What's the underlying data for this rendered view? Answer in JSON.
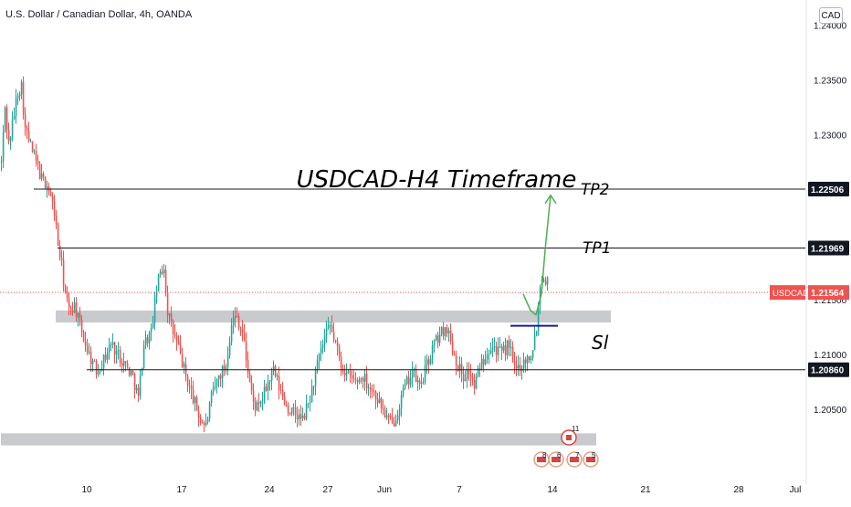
{
  "header": {
    "symbol_title": "U.S. Dollar / Canadian Dollar, 4h, OANDA",
    "currency_button": "CAD"
  },
  "colors": {
    "up": "#26a69a",
    "down": "#ef5350",
    "zone": "#c9cacd",
    "arrow": "#4caf50",
    "sl": "#1a1aa6",
    "price_badge": "#ef5350"
  },
  "chart_data": {
    "type": "candlestick",
    "symbol": "USDCAD",
    "timeframe": "4h",
    "source": "OANDA",
    "ylim": [
      1.199,
      1.2423
    ],
    "y_ticks": [
      1.205,
      1.21,
      1.215,
      1.22,
      1.225,
      1.23,
      1.235,
      1.24
    ],
    "y_tick_labels": [
      "1.20500",
      "1.21000",
      "1.21500",
      "1.22000",
      "1.22500",
      "1.23000",
      "1.23500",
      "1.24000"
    ],
    "x_ticks": [
      {
        "label": "10",
        "bar": 47
      },
      {
        "label": "17",
        "bar": 99
      },
      {
        "label": "24",
        "bar": 147
      },
      {
        "label": "27",
        "bar": 179
      },
      {
        "label": "Jun",
        "bar": 210
      },
      {
        "label": "7",
        "bar": 251
      },
      {
        "label": "14",
        "bar": 302
      },
      {
        "label": "21",
        "bar": 353
      },
      {
        "label": "28",
        "bar": 404
      },
      {
        "label": "Jul",
        "bar": 435
      }
    ],
    "bar_count": 466,
    "anchors": [
      [
        0,
        1.2275
      ],
      [
        2,
        1.2325
      ],
      [
        4,
        1.2292
      ],
      [
        6,
        1.231
      ],
      [
        9,
        1.234
      ],
      [
        11,
        1.2345
      ],
      [
        13,
        1.2305
      ],
      [
        16,
        1.229
      ],
      [
        19,
        1.2275
      ],
      [
        22,
        1.226
      ],
      [
        25,
        1.2255
      ],
      [
        29,
        1.223
      ],
      [
        31,
        1.22
      ],
      [
        33,
        1.218
      ],
      [
        35,
        1.2155
      ],
      [
        37,
        1.214
      ],
      [
        40,
        1.2145
      ],
      [
        44,
        1.212
      ],
      [
        48,
        1.21
      ],
      [
        52,
        1.2085
      ],
      [
        56,
        1.2095
      ],
      [
        60,
        1.211
      ],
      [
        64,
        1.21
      ],
      [
        68,
        1.209
      ],
      [
        72,
        1.208
      ],
      [
        75,
        1.206
      ],
      [
        78,
        1.211
      ],
      [
        82,
        1.212
      ],
      [
        85,
        1.216
      ],
      [
        87,
        1.2175
      ],
      [
        89,
        1.218
      ],
      [
        91,
        1.214
      ],
      [
        94,
        1.212
      ],
      [
        97,
        1.2105
      ],
      [
        101,
        1.208
      ],
      [
        105,
        1.206
      ],
      [
        109,
        1.204
      ],
      [
        112,
        1.2035
      ],
      [
        115,
        1.206
      ],
      [
        119,
        1.208
      ],
      [
        123,
        1.209
      ],
      [
        126,
        1.213
      ],
      [
        129,
        1.2135
      ],
      [
        132,
        1.212
      ],
      [
        135,
        1.2085
      ],
      [
        138,
        1.2055
      ],
      [
        141,
        1.205
      ],
      [
        145,
        1.207
      ],
      [
        149,
        1.2085
      ],
      [
        153,
        1.2065
      ],
      [
        157,
        1.205
      ],
      [
        161,
        1.2045
      ],
      [
        165,
        1.204
      ],
      [
        169,
        1.206
      ],
      [
        173,
        1.209
      ],
      [
        177,
        1.2115
      ],
      [
        180,
        1.2125
      ],
      [
        183,
        1.211
      ],
      [
        186,
        1.209
      ],
      [
        190,
        1.208
      ],
      [
        194,
        1.2075
      ],
      [
        198,
        1.208
      ],
      [
        202,
        1.207
      ],
      [
        206,
        1.206
      ],
      [
        210,
        1.2045
      ],
      [
        214,
        1.2035
      ],
      [
        217,
        1.205
      ],
      [
        221,
        1.207
      ],
      [
        225,
        1.2085
      ],
      [
        229,
        1.207
      ],
      [
        233,
        1.209
      ],
      [
        237,
        1.211
      ],
      [
        241,
        1.212
      ],
      [
        244,
        1.2125
      ],
      [
        247,
        1.2105
      ],
      [
        250,
        1.209
      ],
      [
        253,
        1.208
      ],
      [
        256,
        1.2085
      ],
      [
        259,
        1.207
      ],
      [
        262,
        1.209
      ],
      [
        265,
        1.21
      ],
      [
        268,
        1.211
      ],
      [
        271,
        1.2105
      ],
      [
        274,
        1.21
      ],
      [
        278,
        1.211
      ],
      [
        281,
        1.2085
      ],
      [
        284,
        1.209
      ],
      [
        287,
        1.2095
      ],
      [
        290,
        1.21
      ],
      [
        293,
        1.2125
      ],
      [
        295,
        1.2165
      ],
      [
        297,
        1.2172
      ],
      [
        299,
        1.2165
      ]
    ],
    "levels": [
      {
        "name": "TP2",
        "value": 1.22506,
        "label": "1.22506",
        "x_start_bar": 18
      },
      {
        "name": "TP1",
        "value": 1.21969,
        "label": "1.21969",
        "x_start_bar": 31
      },
      {
        "name": "support",
        "value": 1.2086,
        "label": "1.20860",
        "x_start_bar": 47
      }
    ],
    "current_price": {
      "label": "USDCAD",
      "value": 1.21564,
      "text": "1.21564"
    },
    "zones": [
      {
        "name": "resistance-zone",
        "y_top": 1.214,
        "y_bottom": 1.2129,
        "x_start_bar": 30,
        "x_end_bar": 334
      },
      {
        "name": "demand-zone",
        "y_top": 1.2028,
        "y_bottom": 1.2017,
        "x_start_bar": 0,
        "x_end_bar": 326
      }
    ],
    "sl": {
      "value": 1.2126,
      "x_start_bar": 279,
      "x_end_bar": 305,
      "label": "Sl"
    },
    "annotations": {
      "title": "USDCAD-H4 Timeframe",
      "tp1": "TP1",
      "tp2": "TP2"
    },
    "arrow_path": [
      [
        286,
        1.2155
      ],
      [
        290,
        1.214
      ],
      [
        293,
        1.2136
      ],
      [
        296,
        1.2155
      ],
      [
        298,
        1.2195
      ],
      [
        301,
        1.2245
      ]
    ],
    "events": [
      {
        "label": "8",
        "bar": 293
      },
      {
        "label": "6",
        "bar": 301
      },
      {
        "label": "7",
        "bar": 311
      },
      {
        "label": "5",
        "bar": 320
      }
    ],
    "event_top": {
      "label": "11",
      "bar": 310
    }
  }
}
